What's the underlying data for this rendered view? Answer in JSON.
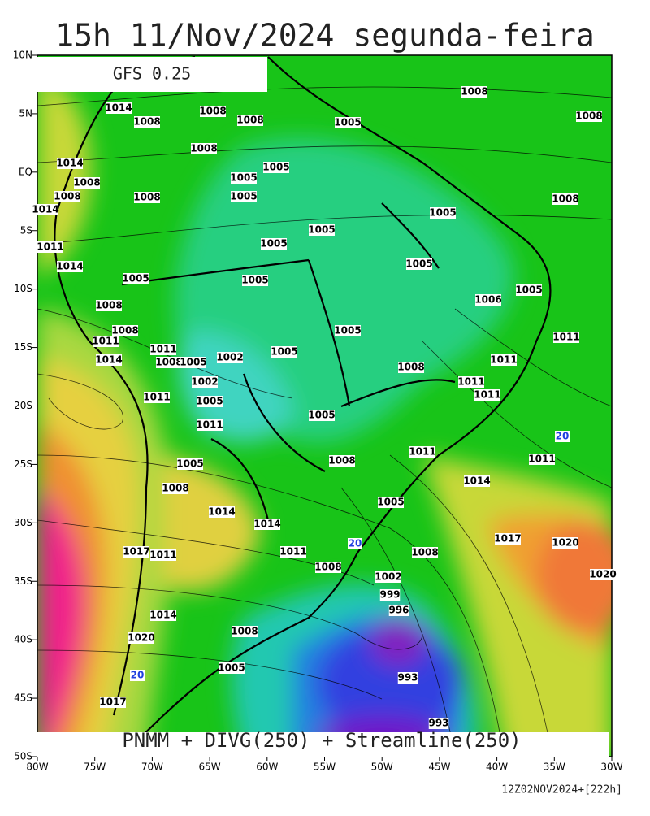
{
  "title": "15h 11/Nov/2024 segunda-feira",
  "model_label": "GFS 0.25",
  "caption": "PNMM + DIVG(250) + Streamline(250)",
  "run_info": "12Z02NOV2024+[222h]",
  "latitude_labels": [
    "10N",
    "5N",
    "EQ",
    "5S",
    "10S",
    "15S",
    "20S",
    "25S",
    "30S",
    "35S",
    "40S",
    "45S",
    "50S"
  ],
  "longitude_labels": [
    "80W",
    "75W",
    "70W",
    "65W",
    "60W",
    "55W",
    "50W",
    "45W",
    "40W",
    "35W",
    "30W"
  ],
  "isobar_labels": [
    "1008",
    "1014",
    "1008",
    "1008",
    "1008",
    "1005",
    "1008",
    "1008",
    "1014",
    "1005",
    "1008",
    "1005",
    "1008",
    "1008",
    "1005",
    "1008",
    "1014",
    "1005",
    "1005",
    "1005",
    "1011",
    "1005",
    "1014",
    "1005",
    "1005",
    "1005",
    "1006",
    "1008",
    "1005",
    "1008",
    "1011",
    "1011",
    "1005",
    "1002",
    "1014",
    "1008",
    "1005",
    "1011",
    "1011",
    "1008",
    "1002",
    "1011",
    "1011",
    "1011",
    "1005",
    "1005",
    "1011",
    "1011",
    "1011",
    "1005",
    "1008",
    "1014",
    "1008",
    "1005",
    "1014",
    "1014",
    "1017",
    "1020",
    "1017",
    "1011",
    "1011",
    "1008",
    "1008",
    "1002",
    "999",
    "996",
    "1014",
    "1008",
    "1020",
    "1005",
    "993",
    "1017",
    "993",
    "1020"
  ],
  "divergence_labels": [
    "20",
    "20",
    "20"
  ]
}
